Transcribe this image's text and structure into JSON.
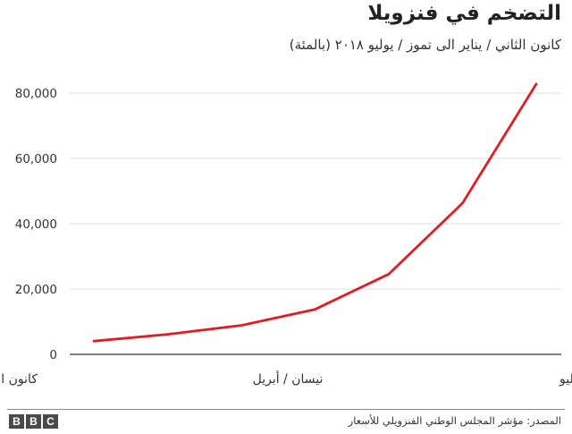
{
  "title": "التضخم في فنزويلا",
  "subtitle": "كانون الثاني / يناير الى تموز / يوليو ٢٠١٨ (بالمئة)",
  "source": "المصدر: مؤشر المجلس الوطني الفنزويلي للأسعار",
  "brand": [
    "B",
    "B",
    "C"
  ],
  "chart_data": {
    "type": "line",
    "title": "التضخم في فنزويلا",
    "subtitle": "كانون الثاني / يناير الى تموز / يوليو ٢٠١٨ (بالمئة)",
    "x": [
      "Jan 2018",
      "Feb 2018",
      "Mar 2018",
      "Apr 2018",
      "May 2018",
      "Jun 2018",
      "Jul 2018"
    ],
    "x_tick_labels": [
      {
        "x_index": 0,
        "label": "كانون الثاني / يناير"
      },
      {
        "x_index": 3,
        "label": "نيسان / أبريل"
      },
      {
        "x_index": 6,
        "label": "تموز / يوليو"
      }
    ],
    "series": [
      {
        "values": [
          4068,
          6147,
          8878,
          13779,
          24571,
          46305,
          82766
        ],
        "color": "#e31b23"
      }
    ],
    "ylim": [
      0,
      80000
    ],
    "y_ticks": [
      0,
      20000,
      40000,
      60000,
      80000
    ],
    "y_tick_labels": [
      "0",
      "20,000",
      "40,000",
      "60,000",
      "80,000"
    ],
    "grid": true,
    "legend": "none"
  }
}
